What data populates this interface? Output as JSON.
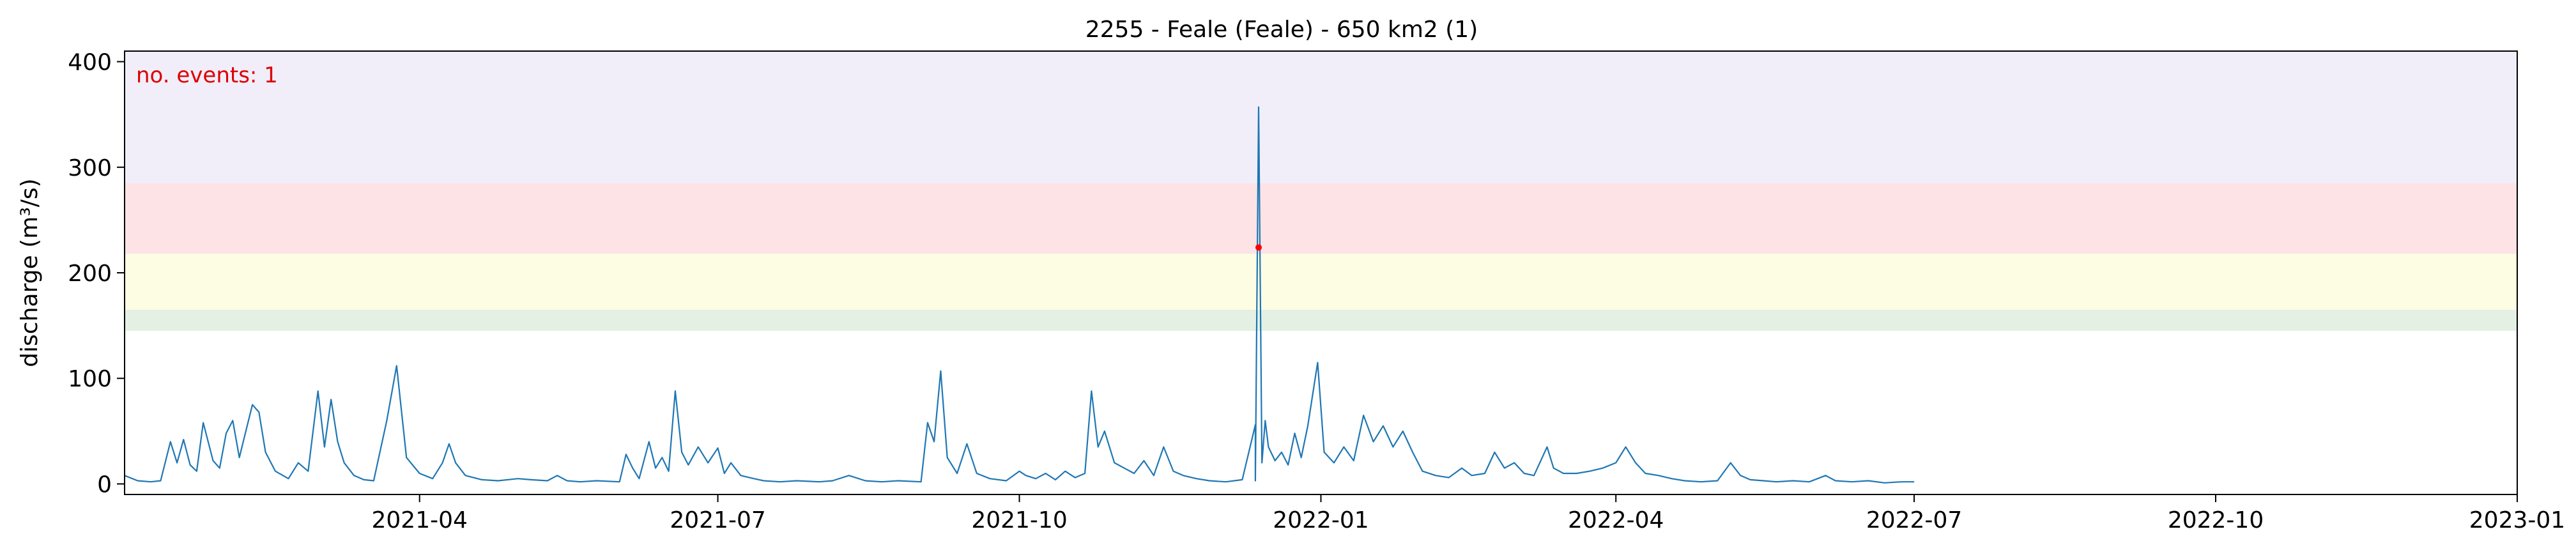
{
  "chart_data": {
    "type": "line",
    "title": "2255 - Feale (Feale) - 650 km2 (1)",
    "ylabel": "discharge (m³/s)",
    "xlabel": "",
    "annotation": "no. events: 1",
    "xlim": [
      "2021-01-01",
      "2023-01-01"
    ],
    "ylim": [
      -10,
      410
    ],
    "x_ticks": [
      "2021-04-01",
      "2021-07-01",
      "2021-10-01",
      "2022-01-01",
      "2022-04-01",
      "2022-07-01",
      "2022-10-01",
      "2023-01-01"
    ],
    "x_tick_labels": [
      "2021-04",
      "2021-07",
      "2021-10",
      "2022-01",
      "2022-04",
      "2022-07",
      "2022-10",
      "2023-01"
    ],
    "y_ticks": [
      0,
      100,
      200,
      300,
      400
    ],
    "y_tick_labels": [
      "0",
      "100",
      "200",
      "300",
      "400"
    ],
    "grid": false,
    "threshold_bands": [
      {
        "from": 145,
        "to": 165,
        "color": "#e3f0e3"
      },
      {
        "from": 165,
        "to": 218,
        "color": "#fdfde3"
      },
      {
        "from": 218,
        "to": 285,
        "color": "#fde3e6"
      },
      {
        "from": 285,
        "to": 410,
        "color": "#f1eefa"
      }
    ],
    "series": [
      {
        "color": "#1f77b4",
        "points": [
          [
            "2021-01-01",
            8
          ],
          [
            "2021-01-05",
            3
          ],
          [
            "2021-01-09",
            2
          ],
          [
            "2021-01-12",
            3
          ],
          [
            "2021-01-15",
            40
          ],
          [
            "2021-01-17",
            20
          ],
          [
            "2021-01-19",
            42
          ],
          [
            "2021-01-21",
            18
          ],
          [
            "2021-01-23",
            12
          ],
          [
            "2021-01-25",
            58
          ],
          [
            "2021-01-28",
            22
          ],
          [
            "2021-01-30",
            15
          ],
          [
            "2021-02-01",
            48
          ],
          [
            "2021-02-03",
            60
          ],
          [
            "2021-02-05",
            25
          ],
          [
            "2021-02-07",
            50
          ],
          [
            "2021-02-09",
            75
          ],
          [
            "2021-02-11",
            68
          ],
          [
            "2021-02-13",
            30
          ],
          [
            "2021-02-16",
            12
          ],
          [
            "2021-02-20",
            5
          ],
          [
            "2021-02-23",
            20
          ],
          [
            "2021-02-26",
            12
          ],
          [
            "2021-03-01",
            88
          ],
          [
            "2021-03-03",
            35
          ],
          [
            "2021-03-05",
            80
          ],
          [
            "2021-03-07",
            40
          ],
          [
            "2021-03-09",
            20
          ],
          [
            "2021-03-12",
            8
          ],
          [
            "2021-03-15",
            4
          ],
          [
            "2021-03-18",
            3
          ],
          [
            "2021-03-22",
            60
          ],
          [
            "2021-03-25",
            112
          ],
          [
            "2021-03-28",
            25
          ],
          [
            "2021-04-01",
            10
          ],
          [
            "2021-04-05",
            5
          ],
          [
            "2021-04-08",
            20
          ],
          [
            "2021-04-10",
            38
          ],
          [
            "2021-04-12",
            20
          ],
          [
            "2021-04-15",
            8
          ],
          [
            "2021-04-20",
            4
          ],
          [
            "2021-04-25",
            3
          ],
          [
            "2021-05-01",
            5
          ],
          [
            "2021-05-05",
            4
          ],
          [
            "2021-05-10",
            3
          ],
          [
            "2021-05-13",
            8
          ],
          [
            "2021-05-16",
            3
          ],
          [
            "2021-05-20",
            2
          ],
          [
            "2021-05-25",
            3
          ],
          [
            "2021-06-01",
            2
          ],
          [
            "2021-06-03",
            28
          ],
          [
            "2021-06-05",
            15
          ],
          [
            "2021-06-07",
            5
          ],
          [
            "2021-06-10",
            40
          ],
          [
            "2021-06-12",
            15
          ],
          [
            "2021-06-14",
            25
          ],
          [
            "2021-06-16",
            12
          ],
          [
            "2021-06-18",
            88
          ],
          [
            "2021-06-20",
            30
          ],
          [
            "2021-06-22",
            18
          ],
          [
            "2021-06-25",
            35
          ],
          [
            "2021-06-28",
            20
          ],
          [
            "2021-07-01",
            34
          ],
          [
            "2021-07-03",
            10
          ],
          [
            "2021-07-05",
            20
          ],
          [
            "2021-07-08",
            8
          ],
          [
            "2021-07-12",
            5
          ],
          [
            "2021-07-15",
            3
          ],
          [
            "2021-07-20",
            2
          ],
          [
            "2021-07-25",
            3
          ],
          [
            "2021-08-01",
            2
          ],
          [
            "2021-08-05",
            3
          ],
          [
            "2021-08-10",
            8
          ],
          [
            "2021-08-15",
            3
          ],
          [
            "2021-08-20",
            2
          ],
          [
            "2021-08-25",
            3
          ],
          [
            "2021-09-01",
            2
          ],
          [
            "2021-09-03",
            58
          ],
          [
            "2021-09-05",
            40
          ],
          [
            "2021-09-07",
            107
          ],
          [
            "2021-09-09",
            25
          ],
          [
            "2021-09-12",
            10
          ],
          [
            "2021-09-15",
            38
          ],
          [
            "2021-09-18",
            10
          ],
          [
            "2021-09-22",
            5
          ],
          [
            "2021-09-27",
            3
          ],
          [
            "2021-10-01",
            12
          ],
          [
            "2021-10-03",
            8
          ],
          [
            "2021-10-06",
            5
          ],
          [
            "2021-10-09",
            10
          ],
          [
            "2021-10-12",
            4
          ],
          [
            "2021-10-15",
            12
          ],
          [
            "2021-10-18",
            6
          ],
          [
            "2021-10-21",
            10
          ],
          [
            "2021-10-23",
            88
          ],
          [
            "2021-10-25",
            35
          ],
          [
            "2021-10-27",
            50
          ],
          [
            "2021-10-30",
            20
          ],
          [
            "2021-11-02",
            15
          ],
          [
            "2021-11-05",
            10
          ],
          [
            "2021-11-08",
            22
          ],
          [
            "2021-11-11",
            8
          ],
          [
            "2021-11-14",
            35
          ],
          [
            "2021-11-17",
            12
          ],
          [
            "2021-11-20",
            8
          ],
          [
            "2021-11-24",
            5
          ],
          [
            "2021-11-28",
            3
          ],
          [
            "2021-12-03",
            2
          ],
          [
            "2021-12-08",
            4
          ],
          [
            "2021-12-12",
            56
          ],
          [
            "2021-12-14",
            20
          ],
          [
            "2021-12-16",
            35
          ],
          [
            "2021-12-18",
            22
          ],
          [
            "2021-12-20",
            30
          ],
          [
            "2021-12-22",
            18
          ],
          [
            "2021-12-24",
            48
          ],
          [
            "2021-12-26",
            25
          ],
          [
            "2021-12-28",
            55
          ],
          [
            "2021-12-31",
            115
          ],
          [
            "2022-01-02",
            30
          ],
          [
            "2022-01-05",
            20
          ],
          [
            "2022-01-08",
            35
          ],
          [
            "2022-01-11",
            22
          ],
          [
            "2022-01-14",
            65
          ],
          [
            "2022-01-17",
            40
          ],
          [
            "2022-01-20",
            55
          ],
          [
            "2022-01-23",
            35
          ],
          [
            "2022-01-26",
            50
          ],
          [
            "2022-01-29",
            30
          ],
          [
            "2022-02-01",
            12
          ],
          [
            "2022-02-05",
            8
          ],
          [
            "2022-02-09",
            6
          ],
          [
            "2022-02-13",
            15
          ],
          [
            "2022-02-16",
            8
          ],
          [
            "2022-02-20",
            10
          ],
          [
            "2022-02-23",
            30
          ],
          [
            "2022-02-26",
            15
          ],
          [
            "2022-03-01",
            20
          ],
          [
            "2022-03-04",
            10
          ],
          [
            "2022-03-07",
            8
          ],
          [
            "2022-03-11",
            35
          ],
          [
            "2022-03-13",
            15
          ],
          [
            "2022-03-16",
            10
          ],
          [
            "2022-03-20",
            10
          ],
          [
            "2022-03-24",
            12
          ],
          [
            "2022-03-28",
            15
          ],
          [
            "2022-04-01",
            20
          ],
          [
            "2022-04-04",
            35
          ],
          [
            "2022-04-07",
            20
          ],
          [
            "2022-04-10",
            10
          ],
          [
            "2022-04-14",
            8
          ],
          [
            "2022-04-18",
            5
          ],
          [
            "2022-04-22",
            3
          ],
          [
            "2022-04-27",
            2
          ],
          [
            "2022-05-02",
            3
          ],
          [
            "2022-05-06",
            20
          ],
          [
            "2022-05-09",
            8
          ],
          [
            "2022-05-12",
            4
          ],
          [
            "2022-05-16",
            3
          ],
          [
            "2022-05-20",
            2
          ],
          [
            "2022-05-25",
            3
          ],
          [
            "2022-05-30",
            2
          ],
          [
            "2022-06-04",
            8
          ],
          [
            "2022-06-07",
            3
          ],
          [
            "2022-06-12",
            2
          ],
          [
            "2022-06-17",
            3
          ],
          [
            "2022-06-22",
            1
          ],
          [
            "2022-06-27",
            2
          ],
          [
            "2022-07-01",
            2
          ]
        ]
      }
    ],
    "spike": {
      "date": "2021-12-13",
      "peak": 357,
      "base": 3
    },
    "markers": [
      {
        "x": "2021-12-13",
        "y": 224,
        "color": "#ff0000"
      }
    ]
  }
}
